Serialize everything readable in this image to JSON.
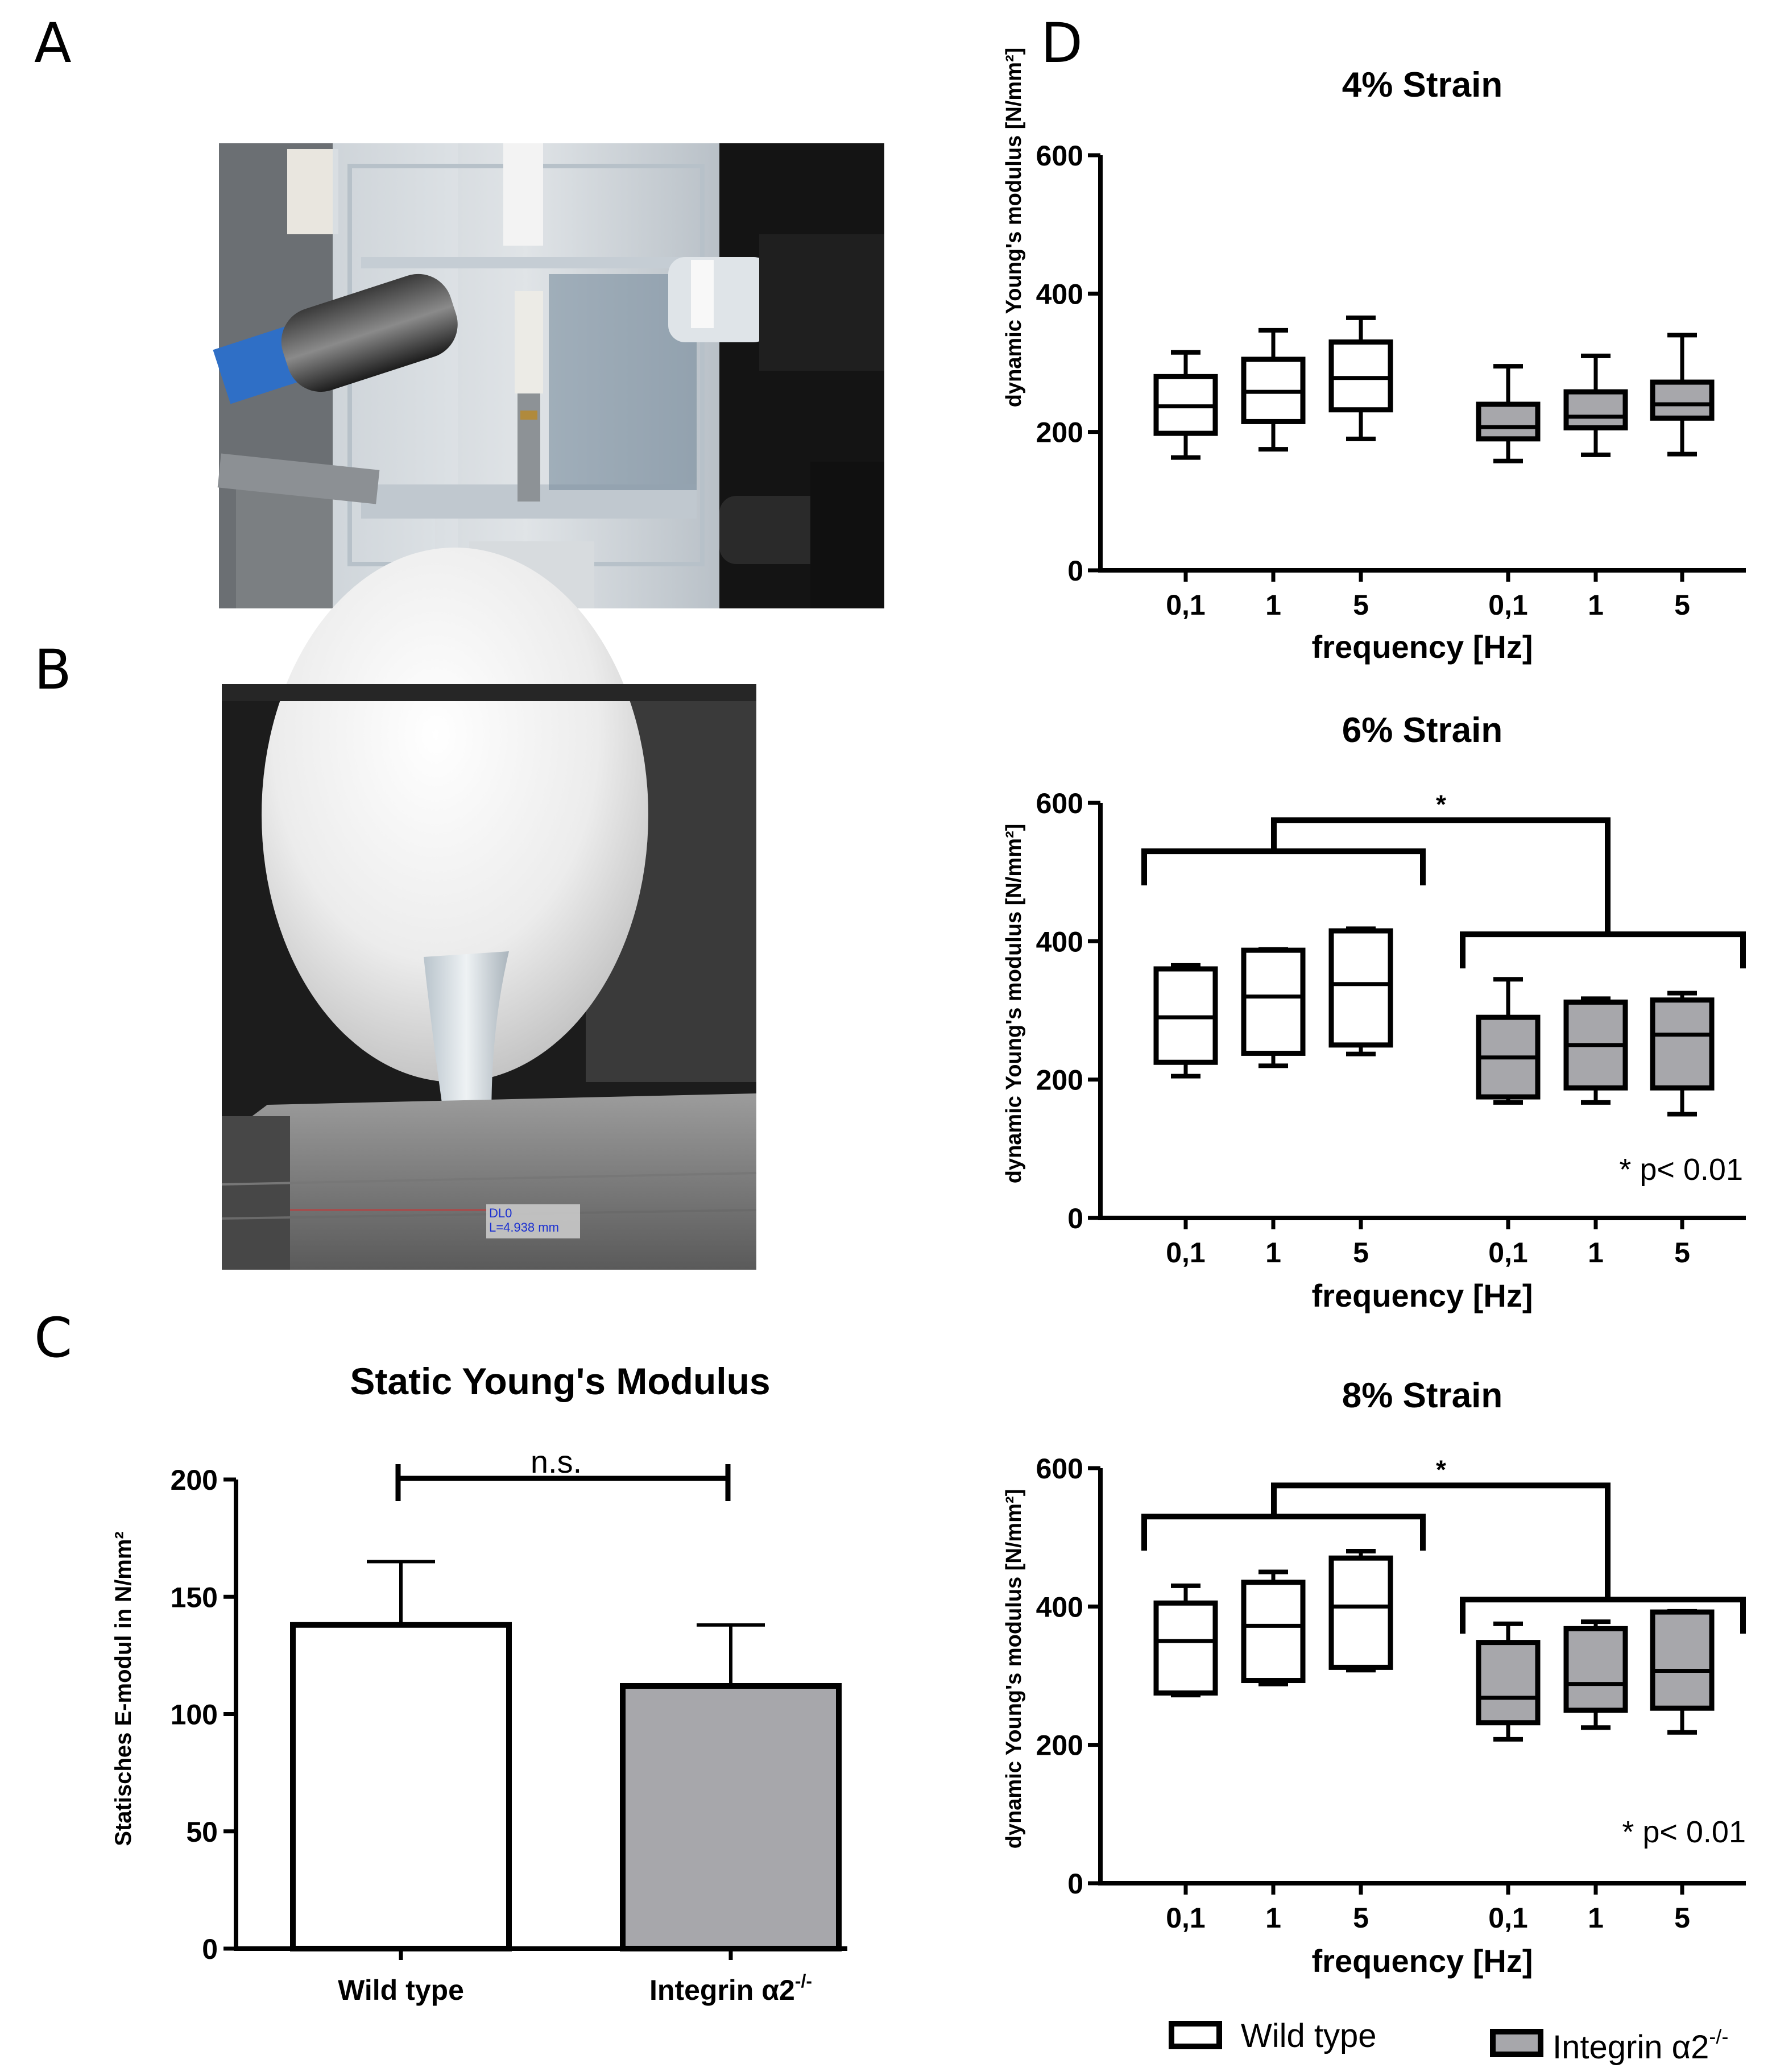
{
  "panel_labels": {
    "a": "A",
    "b": "B",
    "c": "C",
    "d": "D"
  },
  "photo_b_caption": {
    "line1": "DL0",
    "line2": "L=4.938 mm"
  },
  "colors": {
    "wild_type": "#ffffff",
    "integrin": "#a7a7ab",
    "stroke": "#000000"
  },
  "chart_data": [
    {
      "id": "static",
      "type": "bar",
      "title": "Static Young's Modulus",
      "ylabel": "Statisches E-modul in N/mm²",
      "xlabel": "",
      "ylim": [
        0,
        200
      ],
      "yticks": [
        "0",
        "50",
        "100",
        "150",
        "200"
      ],
      "categories": [
        "Wild type",
        "Integrin α2-/-"
      ],
      "cat_main": [
        "Wild type",
        "Integrin α2"
      ],
      "cat_sup": [
        "",
        "-/-"
      ],
      "values": [
        138,
        112
      ],
      "error_upper": [
        165,
        138
      ],
      "annotation": "n.s.",
      "grid": false
    },
    {
      "id": "strain4",
      "type": "box",
      "title": "4% Strain",
      "ylabel": "dynamic Young's modulus [N/mm²]",
      "xlabel": "frequency [Hz]",
      "ylim": [
        0,
        600
      ],
      "yticks": [
        "0",
        "200",
        "400",
        "600"
      ],
      "categories": [
        "0,1",
        "1",
        "5",
        "0,1",
        "1",
        "5"
      ],
      "groups": [
        "Wild type",
        "Wild type",
        "Wild type",
        "Integrin α2-/-",
        "Integrin α2-/-",
        "Integrin α2-/-"
      ],
      "boxes": [
        {
          "min": 163,
          "q1": 198,
          "median": 237,
          "q3": 280,
          "max": 315
        },
        {
          "min": 175,
          "q1": 215,
          "median": 258,
          "q3": 305,
          "max": 347
        },
        {
          "min": 190,
          "q1": 232,
          "median": 278,
          "q3": 330,
          "max": 365
        },
        {
          "min": 158,
          "q1": 190,
          "median": 207,
          "q3": 240,
          "max": 295
        },
        {
          "min": 167,
          "q1": 206,
          "median": 222,
          "q3": 258,
          "max": 310
        },
        {
          "min": 168,
          "q1": 220,
          "median": 240,
          "q3": 272,
          "max": 340
        }
      ],
      "significance": null,
      "pvalue": ""
    },
    {
      "id": "strain6",
      "type": "box",
      "title": "6% Strain",
      "ylabel": "dynamic Young's modulus [N/mm²]",
      "xlabel": "frequency [Hz]",
      "ylim": [
        0,
        600
      ],
      "yticks": [
        "0",
        "200",
        "400",
        "600"
      ],
      "categories": [
        "0,1",
        "1",
        "5",
        "0,1",
        "1",
        "5"
      ],
      "groups": [
        "Wild type",
        "Wild type",
        "Wild type",
        "Integrin α2-/-",
        "Integrin α2-/-",
        "Integrin α2-/-"
      ],
      "boxes": [
        {
          "min": 205,
          "q1": 225,
          "median": 290,
          "q3": 360,
          "max": 365
        },
        {
          "min": 220,
          "q1": 238,
          "median": 320,
          "q3": 387,
          "max": 388
        },
        {
          "min": 237,
          "q1": 250,
          "median": 338,
          "q3": 415,
          "max": 418
        },
        {
          "min": 167,
          "q1": 175,
          "median": 232,
          "q3": 290,
          "max": 345
        },
        {
          "min": 167,
          "q1": 188,
          "median": 250,
          "q3": 312,
          "max": 317
        },
        {
          "min": 150,
          "q1": 188,
          "median": 265,
          "q3": 315,
          "max": 325
        }
      ],
      "significance": "*",
      "pvalue": "* p< 0.01"
    },
    {
      "id": "strain8",
      "type": "box",
      "title": "8% Strain",
      "ylabel": "dynamic Young's modulus [N/mm²]",
      "xlabel": "frequency [Hz]",
      "ylim": [
        0,
        600
      ],
      "yticks": [
        "0",
        "200",
        "400",
        "600"
      ],
      "categories": [
        "0,1",
        "1",
        "5",
        "0,1",
        "1",
        "5"
      ],
      "groups": [
        "Wild type",
        "Wild type",
        "Wild type",
        "Integrin α2-/-",
        "Integrin α2-/-",
        "Integrin α2-/-"
      ],
      "boxes": [
        {
          "min": 272,
          "q1": 275,
          "median": 350,
          "q3": 405,
          "max": 430
        },
        {
          "min": 288,
          "q1": 293,
          "median": 372,
          "q3": 435,
          "max": 450
        },
        {
          "min": 308,
          "q1": 312,
          "median": 400,
          "q3": 470,
          "max": 480
        },
        {
          "min": 208,
          "q1": 232,
          "median": 268,
          "q3": 348,
          "max": 375
        },
        {
          "min": 225,
          "q1": 250,
          "median": 288,
          "q3": 368,
          "max": 378
        },
        {
          "min": 218,
          "q1": 253,
          "median": 307,
          "q3": 392,
          "max": 393
        }
      ],
      "significance": "*",
      "pvalue": "* p< 0.01"
    }
  ],
  "legend": {
    "items": [
      {
        "label": "Wild type",
        "main": "Wild type",
        "sup": ""
      },
      {
        "label": "Integrin α2-/-",
        "main": "Integrin α2",
        "sup": "-/-"
      }
    ]
  }
}
